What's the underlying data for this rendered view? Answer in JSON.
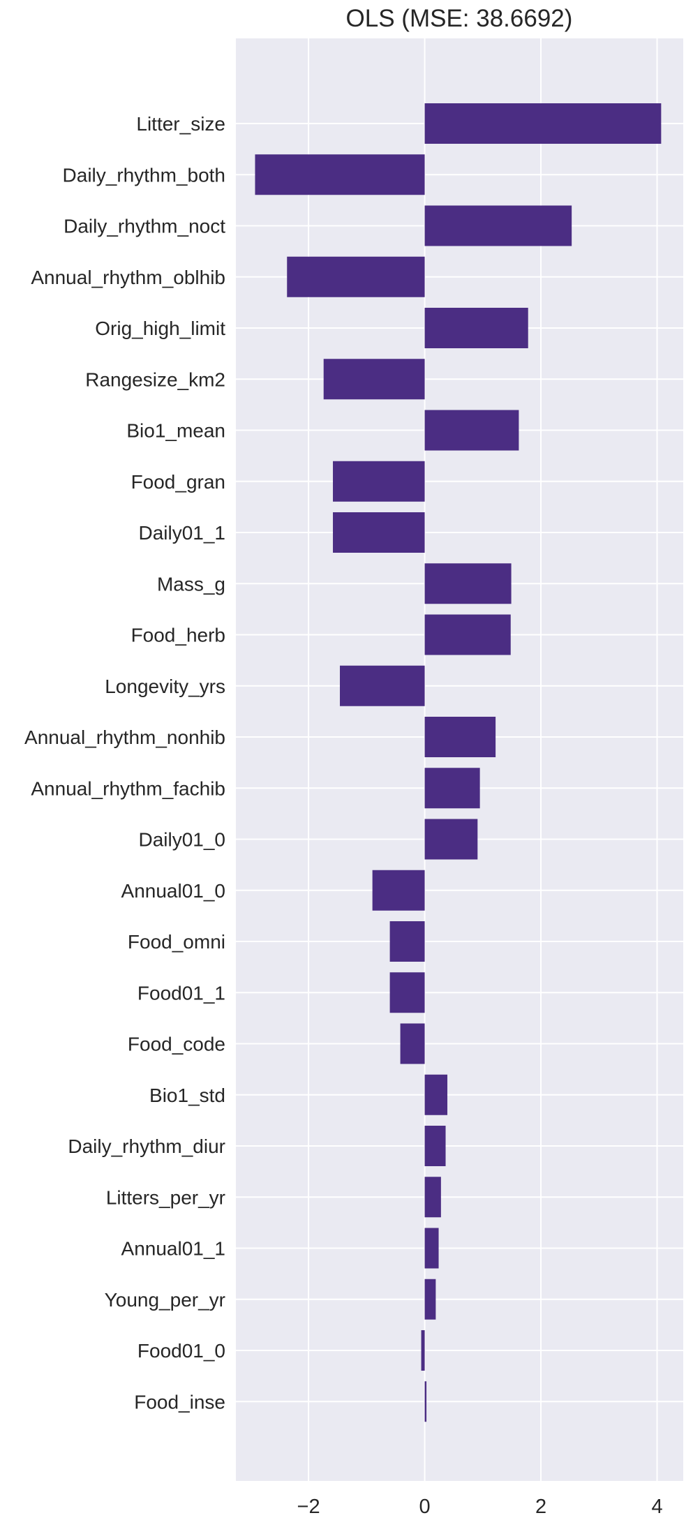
{
  "chart_data": {
    "type": "bar",
    "orientation": "horizontal",
    "title": "OLS (MSE: 38.6692)",
    "xlabel": "",
    "ylabel": "",
    "xlim": [
      -3.25,
      4.45
    ],
    "xticks": [
      -2,
      0,
      2,
      4
    ],
    "xtick_labels": [
      "−2",
      "0",
      "2",
      "4"
    ],
    "grid": true,
    "background": "#EAEAF2",
    "grid_color": "#FFFFFF",
    "bar_color": "#4B2D83",
    "categories": [
      "Litter_size",
      "Daily_rhythm_both",
      "Daily_rhythm_noct",
      "Annual_rhythm_oblhib",
      "Orig_high_limit",
      "Rangesize_km2",
      "Bio1_mean",
      "Food_gran",
      "Daily01_1",
      "Mass_g",
      "Food_herb",
      "Longevity_yrs",
      "Annual_rhythm_nonhib",
      "Annual_rhythm_fachib",
      "Daily01_0",
      "Annual01_0",
      "Food_omni",
      "Food01_1",
      "Food_code",
      "Bio1_std",
      "Daily_rhythm_diur",
      "Litters_per_yr",
      "Annual01_1",
      "Young_per_yr",
      "Food01_0",
      "Food_inse"
    ],
    "values": [
      4.07,
      -2.92,
      2.53,
      -2.37,
      1.78,
      -1.74,
      1.62,
      -1.58,
      -1.58,
      1.49,
      1.48,
      -1.46,
      1.22,
      0.95,
      0.91,
      -0.9,
      -0.6,
      -0.6,
      -0.42,
      0.39,
      0.36,
      0.28,
      0.24,
      0.19,
      -0.06,
      0.03
    ]
  }
}
